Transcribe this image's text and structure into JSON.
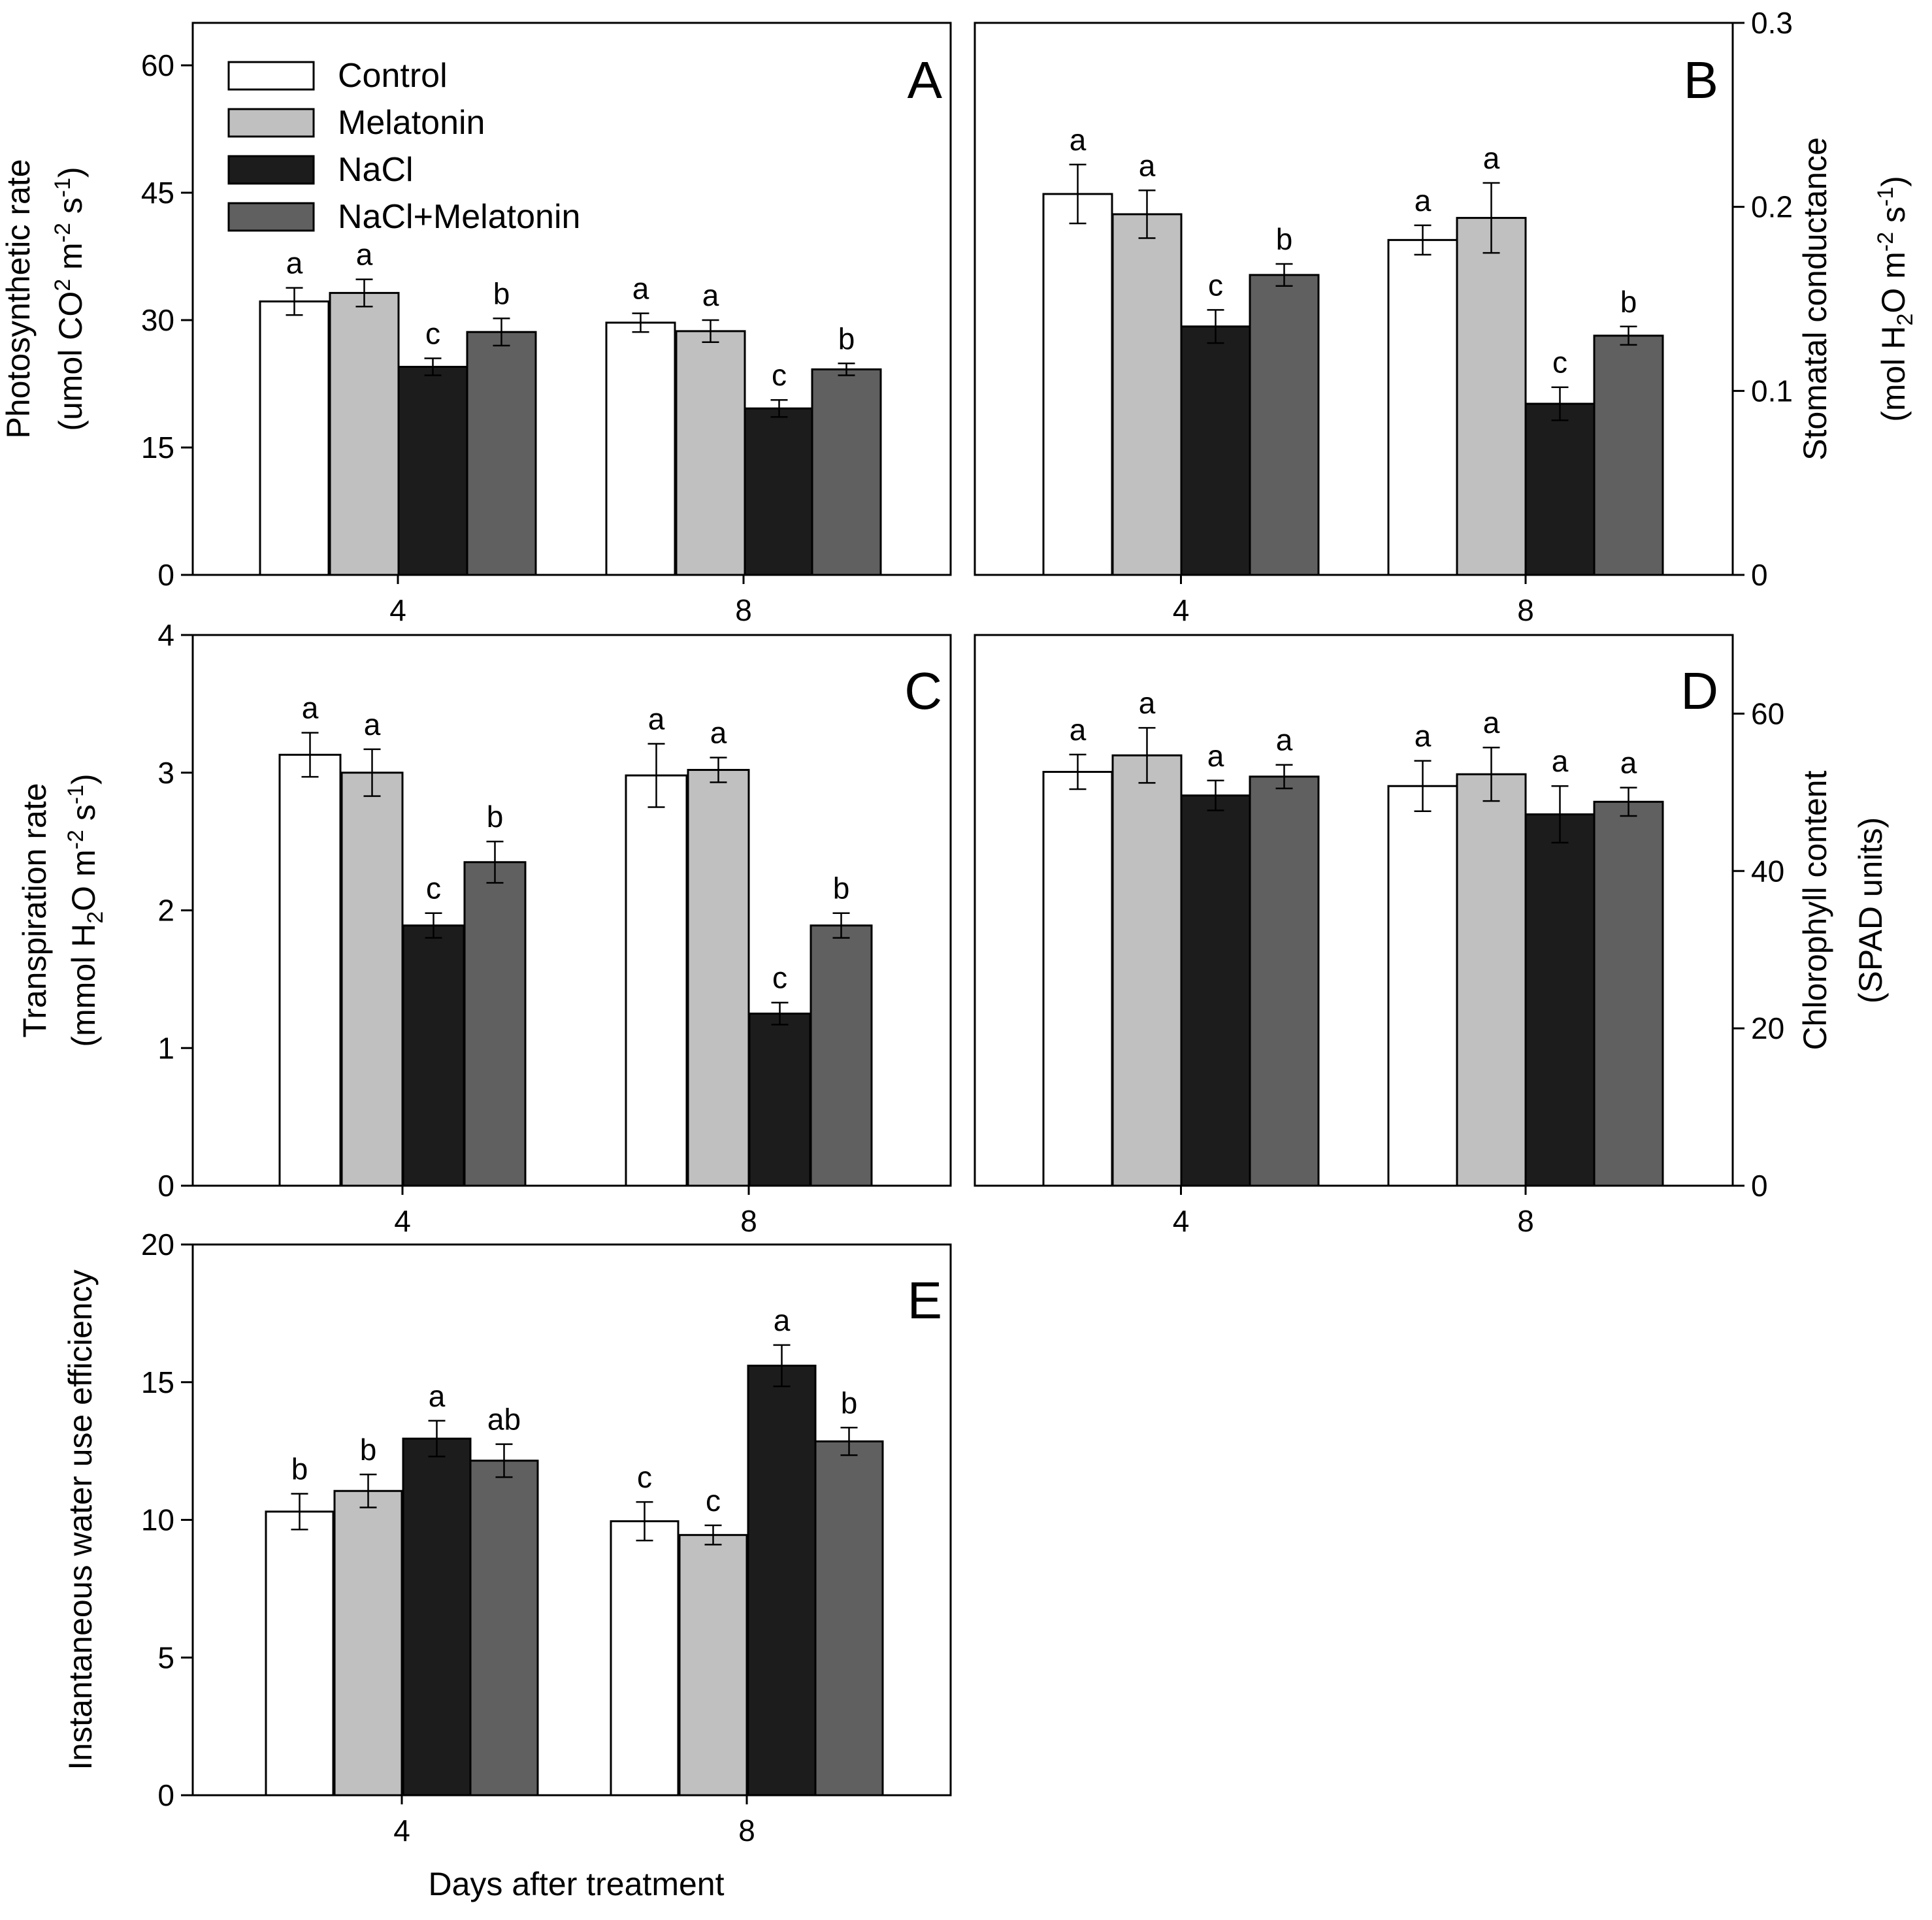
{
  "legend": {
    "entries": [
      {
        "label": "Control",
        "color": "#ffffff"
      },
      {
        "label": "Melatonin",
        "color": "#c0c0c0"
      },
      {
        "label": "NaCl",
        "color": "#1c1c1c"
      },
      {
        "label": "NaCl+Melatonin",
        "color": "#606060"
      }
    ]
  },
  "x_axis_title": "Days after treatment",
  "chart_data": [
    {
      "type": "bar",
      "panel": "A",
      "categories": [
        "4",
        "8"
      ],
      "ylim": [
        0,
        65
      ],
      "yticks": [
        0,
        15,
        30,
        45,
        60
      ],
      "ylabel_line1": "Photosynthetic rate",
      "ylabel_line2": "(umol CO2 m-2 s-1)",
      "series": [
        {
          "name": "Control",
          "values": [
            32.2,
            29.7
          ],
          "errors": [
            1.6,
            1.1
          ],
          "letters": [
            "a",
            "a"
          ]
        },
        {
          "name": "Melatonin",
          "values": [
            33.2,
            28.7
          ],
          "errors": [
            1.6,
            1.3
          ],
          "letters": [
            "a",
            "a"
          ]
        },
        {
          "name": "NaCl",
          "values": [
            24.5,
            19.6
          ],
          "errors": [
            1.0,
            1.0
          ],
          "letters": [
            "c",
            "c"
          ]
        },
        {
          "name": "NaCl+Melatonin",
          "values": [
            28.6,
            24.2
          ],
          "errors": [
            1.6,
            0.7
          ],
          "letters": [
            "b",
            "b"
          ]
        }
      ]
    },
    {
      "type": "bar",
      "panel": "B",
      "categories": [
        "4",
        "8"
      ],
      "ylim": [
        0,
        0.3
      ],
      "yticks": [
        0,
        0.1,
        0.2,
        0.3
      ],
      "ylabel_line1": "Stomatal conductance",
      "ylabel_line2": "(mol H2O m-2 s-1)",
      "series": [
        {
          "name": "Control",
          "values": [
            0.207,
            0.182
          ],
          "errors": [
            0.016,
            0.008
          ],
          "letters": [
            "a",
            "a"
          ]
        },
        {
          "name": "Melatonin",
          "values": [
            0.196,
            0.194
          ],
          "errors": [
            0.013,
            0.019
          ],
          "letters": [
            "a",
            "a"
          ]
        },
        {
          "name": "NaCl",
          "values": [
            0.135,
            0.093
          ],
          "errors": [
            0.009,
            0.009
          ],
          "letters": [
            "c",
            "c"
          ]
        },
        {
          "name": "NaCl+Melatonin",
          "values": [
            0.163,
            0.13
          ],
          "errors": [
            0.006,
            0.005
          ],
          "letters": [
            "b",
            "b"
          ]
        }
      ]
    },
    {
      "type": "bar",
      "panel": "C",
      "categories": [
        "4",
        "8"
      ],
      "ylim": [
        0,
        4
      ],
      "yticks": [
        0,
        1,
        2,
        3,
        4
      ],
      "ylabel_line1": "Transpiration rate",
      "ylabel_line2": "(mmol H2O m-2 s-1)",
      "series": [
        {
          "name": "Control",
          "values": [
            3.13,
            2.98
          ],
          "errors": [
            0.16,
            0.23
          ],
          "letters": [
            "a",
            "a"
          ]
        },
        {
          "name": "Melatonin",
          "values": [
            3.0,
            3.02
          ],
          "errors": [
            0.17,
            0.09
          ],
          "letters": [
            "a",
            "a"
          ]
        },
        {
          "name": "NaCl",
          "values": [
            1.89,
            1.25
          ],
          "errors": [
            0.09,
            0.08
          ],
          "letters": [
            "c",
            "c"
          ]
        },
        {
          "name": "NaCl+Melatonin",
          "values": [
            2.35,
            1.89
          ],
          "errors": [
            0.15,
            0.09
          ],
          "letters": [
            "b",
            "b"
          ]
        }
      ]
    },
    {
      "type": "bar",
      "panel": "D",
      "categories": [
        "4",
        "8"
      ],
      "ylim": [
        0,
        70
      ],
      "yticks": [
        0,
        20,
        40,
        60
      ],
      "ylabel_line1": "Chlorophyll content",
      "ylabel_line2": "(SPAD units)",
      "series": [
        {
          "name": "Control",
          "values": [
            52.6,
            50.8
          ],
          "errors": [
            2.2,
            3.2
          ],
          "letters": [
            "a",
            "a"
          ]
        },
        {
          "name": "Melatonin",
          "values": [
            54.7,
            52.3
          ],
          "errors": [
            3.5,
            3.4
          ],
          "letters": [
            "a",
            "a"
          ]
        },
        {
          "name": "NaCl",
          "values": [
            49.6,
            47.2
          ],
          "errors": [
            1.9,
            3.6
          ],
          "letters": [
            "a",
            "a"
          ]
        },
        {
          "name": "NaCl+Melatonin",
          "values": [
            52.0,
            48.8
          ],
          "errors": [
            1.5,
            1.8
          ],
          "letters": [
            "a",
            "a"
          ]
        }
      ]
    },
    {
      "type": "bar",
      "panel": "E",
      "categories": [
        "4",
        "8"
      ],
      "ylim": [
        0,
        20
      ],
      "yticks": [
        0,
        5,
        10,
        15,
        20
      ],
      "ylabel_line1": "Instantaneous water use efficiency",
      "ylabel_line2": "",
      "series": [
        {
          "name": "Control",
          "values": [
            10.3,
            9.95
          ],
          "errors": [
            0.65,
            0.7
          ],
          "letters": [
            "b",
            "c"
          ]
        },
        {
          "name": "Melatonin",
          "values": [
            11.05,
            9.45
          ],
          "errors": [
            0.6,
            0.35
          ],
          "letters": [
            "b",
            "c"
          ]
        },
        {
          "name": "NaCl",
          "values": [
            12.95,
            15.6
          ],
          "errors": [
            0.65,
            0.75
          ],
          "letters": [
            "a",
            "a"
          ]
        },
        {
          "name": "NaCl+Melatonin",
          "values": [
            12.15,
            12.85
          ],
          "errors": [
            0.6,
            0.5
          ],
          "letters": [
            "ab",
            "b"
          ]
        }
      ]
    }
  ]
}
